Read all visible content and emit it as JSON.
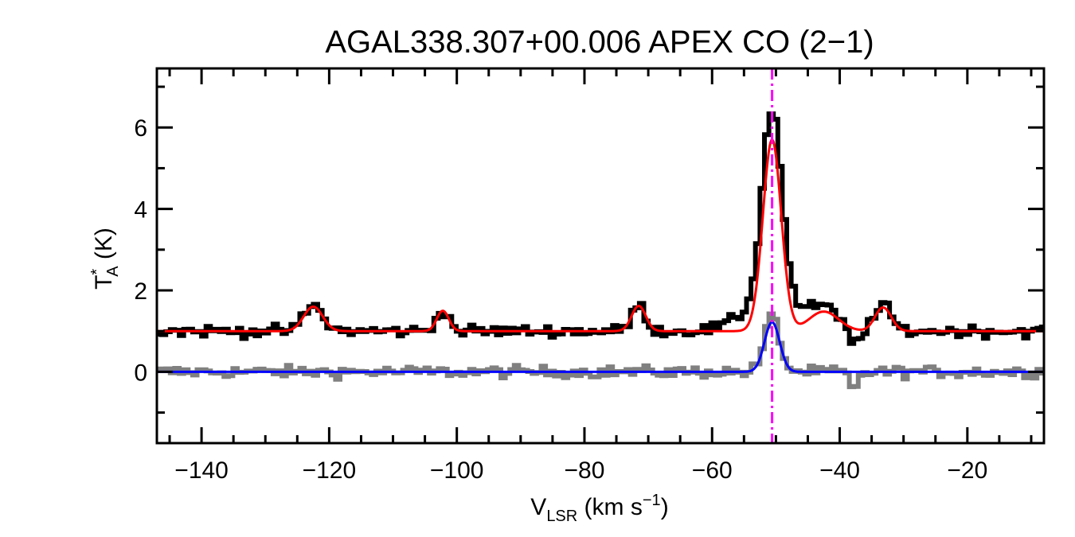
{
  "chart_data": {
    "type": "line",
    "title": "AGAL338.307+00.006  APEX CO (2−1)",
    "xlabel": {
      "main": "V",
      "sub": "LSR",
      "rest": " (km s",
      "sup": "−1",
      "end": ")"
    },
    "ylabel": {
      "main": "T",
      "sup": "*",
      "sub": "A",
      "rest": " (K)"
    },
    "xlim": [
      -147,
      -8
    ],
    "ylim": [
      -1.75,
      7.45
    ],
    "x_ticks": [
      -140,
      -120,
      -100,
      -80,
      -60,
      -40,
      -20
    ],
    "x_tick_labels": [
      "−140",
      "−120",
      "−100",
      "−80",
      "−60",
      "−40",
      "−20"
    ],
    "y_ticks": [
      0,
      2,
      4,
      6
    ],
    "y_tick_labels": [
      "0",
      "2",
      "4",
      "6"
    ],
    "grid": false,
    "vline": {
      "x": -50.6,
      "color": "#ff00ff",
      "style": "dash-dot"
    },
    "series": [
      {
        "kind": "observed-spectrum",
        "style": "step",
        "color": "#000000",
        "baseline": 1.0,
        "noise": 0.1,
        "components": [
          {
            "center": -122.5,
            "amplitude": 0.62,
            "fwhm": 3.5
          },
          {
            "center": -102.2,
            "amplitude": 0.55,
            "fwhm": 2.2
          },
          {
            "center": -71.5,
            "amplitude": 0.62,
            "fwhm": 2.6
          },
          {
            "center": -50.6,
            "amplitude": 4.7,
            "fwhm": 3.6
          },
          {
            "center": -50.6,
            "amplitude": 0.75,
            "fwhm": 10
          },
          {
            "center": -42.5,
            "amplitude": 0.5,
            "fwhm": 5
          },
          {
            "center": -37.8,
            "amplitude": -0.38,
            "fwhm": 1.5
          },
          {
            "center": -33.2,
            "amplitude": 0.62,
            "fwhm": 3
          }
        ]
      },
      {
        "kind": "fit",
        "style": "line",
        "color": "#ff0000",
        "baseline": 1.0,
        "components": [
          {
            "center": -122.5,
            "amplitude": 0.6,
            "fwhm": 3.5
          },
          {
            "center": -102.2,
            "amplitude": 0.5,
            "fwhm": 2.2
          },
          {
            "center": -71.5,
            "amplitude": 0.62,
            "fwhm": 2.6
          },
          {
            "center": -50.6,
            "amplitude": 4.7,
            "fwhm": 3.4
          },
          {
            "center": -42.5,
            "amplitude": 0.48,
            "fwhm": 5.5
          },
          {
            "center": -33.2,
            "amplitude": 0.58,
            "fwhm": 3
          }
        ]
      },
      {
        "kind": "observed-spectrum",
        "style": "step",
        "color": "#808080",
        "baseline": 0.0,
        "noise": 0.1,
        "components": [
          {
            "center": -50.6,
            "amplitude": 1.35,
            "fwhm": 2.8
          },
          {
            "center": -37.8,
            "amplitude": -0.55,
            "fwhm": 1.2
          }
        ]
      },
      {
        "kind": "fit",
        "style": "line",
        "color": "#0000ff",
        "baseline": 0.0,
        "components": [
          {
            "center": -50.6,
            "amplitude": 1.22,
            "fwhm": 2.8
          }
        ]
      }
    ]
  }
}
